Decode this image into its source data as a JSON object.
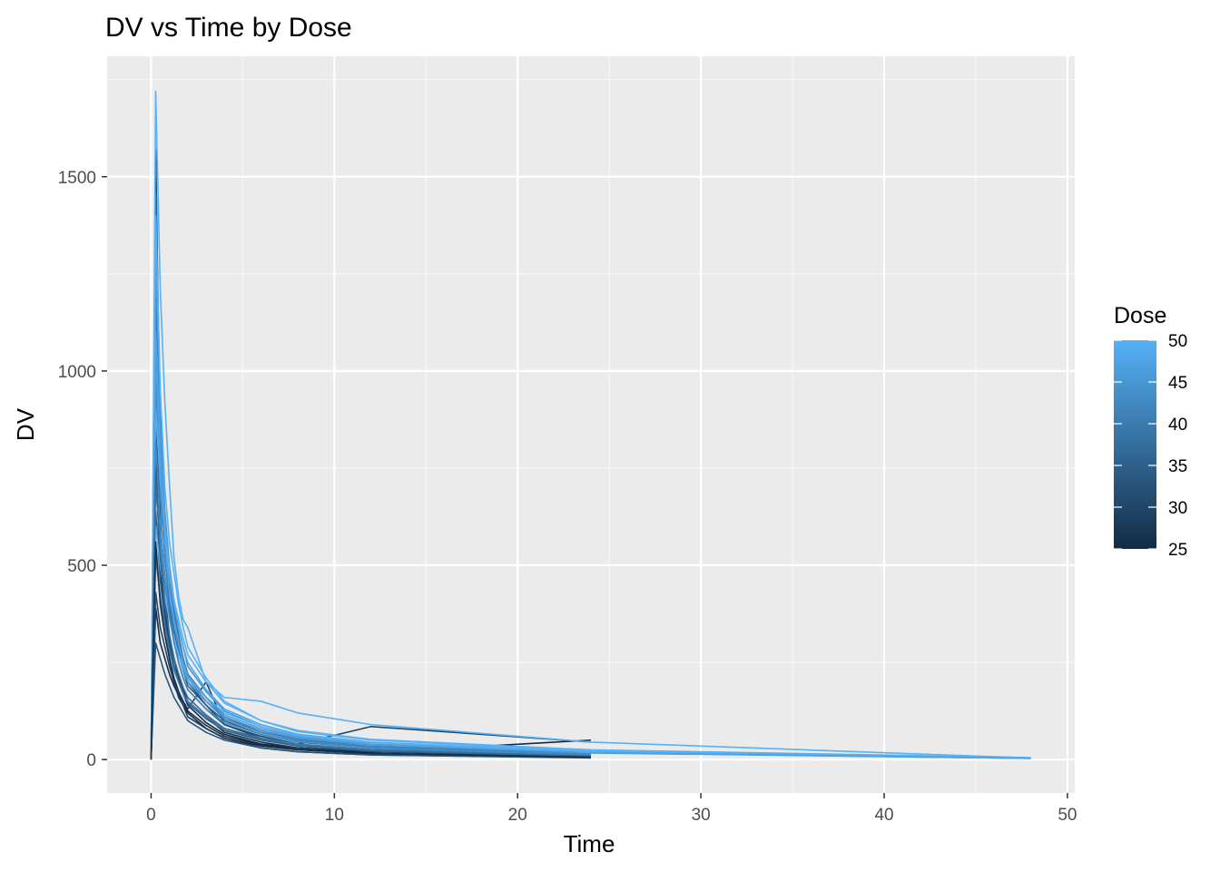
{
  "chart_data": {
    "type": "line",
    "title": "DV vs Time by Dose",
    "xlabel": "Time",
    "ylabel": "DV",
    "xlim": [
      -2.4,
      50.4
    ],
    "ylim": [
      -86,
      1810
    ],
    "x_ticks": [
      0,
      10,
      20,
      30,
      40,
      50
    ],
    "y_ticks": [
      0,
      500,
      1000,
      1500
    ],
    "grid": true,
    "legend": {
      "title": "Dose",
      "position": "right",
      "type": "colorbar",
      "range": [
        25,
        50
      ],
      "ticks": [
        25,
        30,
        35,
        40,
        45,
        50
      ],
      "colors": {
        "low": "#132b43",
        "high": "#56b1f7"
      }
    },
    "sampling_times": [
      0,
      0.25,
      0.5,
      0.75,
      1,
      1.25,
      1.5,
      1.75,
      2,
      3,
      4,
      6,
      8,
      12,
      24,
      48
    ],
    "series": [
      {
        "dose": 25,
        "x": [
          0,
          0.25,
          0.5,
          0.75,
          1,
          1.25,
          1.5,
          1.75,
          2,
          3,
          4,
          6,
          8,
          12,
          24
        ],
        "y": [
          0,
          390,
          300,
          260,
          220,
          190,
          165,
          140,
          120,
          80,
          55,
          35,
          25,
          15,
          6
        ]
      },
      {
        "dose": 25,
        "x": [
          0,
          0.25,
          0.5,
          0.75,
          1,
          1.25,
          1.5,
          1.75,
          2,
          3,
          4,
          6,
          8,
          12,
          24
        ],
        "y": [
          0,
          780,
          480,
          380,
          300,
          240,
          200,
          170,
          140,
          95,
          65,
          40,
          30,
          18,
          50
        ]
      },
      {
        "dose": 27,
        "x": [
          0,
          0.25,
          0.5,
          0.75,
          1,
          1.25,
          1.5,
          1.75,
          2,
          3,
          4,
          6,
          8,
          12,
          24
        ],
        "y": [
          0,
          1160,
          620,
          420,
          320,
          260,
          210,
          180,
          150,
          110,
          70,
          45,
          30,
          20,
          8
        ]
      },
      {
        "dose": 28,
        "x": [
          0,
          0.25,
          0.5,
          0.75,
          1,
          1.25,
          1.5,
          1.75,
          2,
          3,
          4,
          6,
          8,
          12,
          24
        ],
        "y": [
          0,
          1090,
          560,
          360,
          260,
          200,
          160,
          140,
          110,
          80,
          55,
          30,
          20,
          12,
          5
        ]
      },
      {
        "dose": 30,
        "x": [
          0,
          0.25,
          0.5,
          0.75,
          1,
          1.25,
          1.5,
          1.75,
          2,
          3,
          4,
          6,
          8,
          12,
          24
        ],
        "y": [
          0,
          1570,
          780,
          560,
          450,
          380,
          300,
          240,
          200,
          140,
          90,
          55,
          35,
          22,
          10
        ]
      },
      {
        "dose": 30,
        "x": [
          0,
          0.25,
          0.5,
          0.75,
          1,
          1.25,
          1.5,
          1.75,
          2,
          3,
          4,
          6,
          8,
          12,
          24
        ],
        "y": [
          0,
          430,
          340,
          290,
          240,
          200,
          170,
          150,
          130,
          200,
          90,
          60,
          40,
          85,
          45
        ]
      },
      {
        "dose": 32,
        "x": [
          0,
          0.25,
          0.5,
          0.75,
          1,
          1.25,
          1.5,
          1.75,
          2,
          3,
          4,
          6,
          8,
          12,
          24
        ],
        "y": [
          0,
          880,
          600,
          470,
          380,
          310,
          250,
          210,
          180,
          130,
          90,
          60,
          40,
          25,
          10
        ]
      },
      {
        "dose": 33,
        "x": [
          0,
          0.25,
          0.5,
          0.75,
          1,
          1.25,
          1.5,
          1.75,
          2,
          3,
          4,
          6,
          8,
          12,
          24
        ],
        "y": [
          0,
          300,
          260,
          220,
          190,
          160,
          140,
          120,
          100,
          70,
          50,
          30,
          20,
          12,
          4
        ]
      },
      {
        "dose": 35,
        "x": [
          0,
          0.25,
          0.5,
          0.75,
          1,
          1.25,
          1.5,
          1.75,
          2,
          3,
          4,
          6,
          8,
          12,
          24
        ],
        "y": [
          0,
          1000,
          700,
          520,
          400,
          330,
          280,
          230,
          190,
          140,
          100,
          65,
          45,
          30,
          12
        ]
      },
      {
        "dose": 35,
        "x": [
          0,
          0.25,
          0.5,
          0.75,
          1,
          1.25,
          1.5,
          1.75,
          2,
          3,
          4,
          6,
          8,
          12,
          24
        ],
        "y": [
          0,
          640,
          460,
          360,
          290,
          240,
          200,
          170,
          145,
          105,
          75,
          50,
          35,
          22,
          9
        ]
      },
      {
        "dose": 38,
        "x": [
          0,
          0.25,
          0.5,
          0.75,
          1,
          1.25,
          1.5,
          1.75,
          2,
          3,
          4,
          6,
          8,
          12,
          24
        ],
        "y": [
          0,
          1460,
          900,
          620,
          480,
          390,
          320,
          260,
          220,
          160,
          110,
          70,
          50,
          32,
          14
        ]
      },
      {
        "dose": 40,
        "x": [
          0,
          0.25,
          0.5,
          0.75,
          1,
          1.25,
          1.5,
          1.75,
          2,
          3,
          4,
          6,
          8,
          12,
          24
        ],
        "y": [
          0,
          1200,
          800,
          600,
          460,
          380,
          310,
          260,
          220,
          160,
          110,
          75,
          52,
          34,
          15
        ]
      },
      {
        "dose": 40,
        "x": [
          0,
          0.25,
          0.5,
          0.75,
          1,
          1.25,
          1.5,
          1.75,
          2,
          3,
          4,
          6,
          8,
          12,
          24
        ],
        "y": [
          0,
          520,
          420,
          340,
          280,
          230,
          200,
          170,
          150,
          110,
          80,
          55,
          40,
          26,
          11
        ]
      },
      {
        "dose": 42,
        "x": [
          0,
          0.25,
          0.5,
          0.75,
          1,
          1.25,
          1.5,
          1.75,
          2,
          3,
          4,
          6,
          8,
          12,
          24
        ],
        "y": [
          0,
          950,
          680,
          520,
          410,
          340,
          290,
          240,
          210,
          150,
          105,
          70,
          50,
          32,
          13
        ]
      },
      {
        "dose": 45,
        "x": [
          0,
          0.25,
          0.5,
          0.75,
          1,
          1.25,
          1.5,
          1.75,
          2,
          3,
          4,
          6,
          8,
          12,
          24,
          48
        ],
        "y": [
          0,
          1300,
          860,
          640,
          500,
          410,
          340,
          290,
          240,
          175,
          125,
          85,
          60,
          40,
          18,
          3
        ]
      },
      {
        "dose": 45,
        "x": [
          0,
          0.25,
          0.5,
          0.75,
          1,
          1.25,
          1.5,
          1.75,
          2,
          3,
          4,
          6,
          8,
          12,
          24,
          48
        ],
        "y": [
          0,
          700,
          560,
          450,
          370,
          310,
          270,
          230,
          200,
          150,
          110,
          75,
          55,
          38,
          17,
          3
        ]
      },
      {
        "dose": 48,
        "x": [
          0,
          0.25,
          0.5,
          0.75,
          1,
          1.25,
          1.5,
          1.75,
          2,
          3,
          4,
          6,
          8,
          12,
          24,
          48
        ],
        "y": [
          0,
          1100,
          780,
          600,
          480,
          400,
          340,
          290,
          250,
          180,
          130,
          90,
          65,
          45,
          20,
          4
        ]
      },
      {
        "dose": 50,
        "x": [
          0,
          0.25,
          0.5,
          0.75,
          1,
          1.25,
          1.5,
          1.75,
          2,
          3,
          4,
          6,
          8,
          12,
          24,
          48
        ],
        "y": [
          0,
          1720,
          1210,
          920,
          710,
          520,
          420,
          360,
          340,
          200,
          160,
          150,
          120,
          90,
          45,
          4
        ]
      },
      {
        "dose": 50,
        "x": [
          0,
          0.25,
          0.5,
          0.75,
          1,
          1.25,
          1.5,
          1.75,
          2,
          3,
          4,
          6,
          8,
          12,
          24,
          48
        ],
        "y": [
          0,
          1400,
          950,
          700,
          560,
          480,
          400,
          340,
          290,
          210,
          150,
          100,
          75,
          52,
          25,
          5
        ]
      },
      {
        "dose": 50,
        "x": [
          0,
          0.25,
          0.5,
          0.75,
          1,
          1.25,
          1.5,
          1.75,
          2,
          3,
          4,
          6,
          8,
          12,
          24,
          48
        ],
        "y": [
          0,
          900,
          720,
          580,
          480,
          410,
          360,
          310,
          270,
          200,
          145,
          100,
          72,
          50,
          22,
          4
        ]
      },
      {
        "dose": 50,
        "x": [
          0,
          0.25,
          0.5,
          0.75,
          1,
          1.25,
          1.5,
          1.75,
          2,
          3,
          4,
          6,
          8,
          12,
          24,
          48
        ],
        "y": [
          0,
          600,
          500,
          420,
          360,
          310,
          270,
          240,
          210,
          160,
          120,
          85,
          62,
          44,
          20,
          3
        ]
      },
      {
        "dose": 47,
        "x": [
          0,
          0.25,
          0.5,
          0.75,
          1,
          1.25,
          1.5,
          1.75,
          2,
          3,
          4,
          6,
          8,
          12,
          24,
          48
        ],
        "y": [
          0,
          1050,
          740,
          560,
          440,
          360,
          300,
          250,
          215,
          160,
          115,
          80,
          58,
          40,
          18,
          3
        ]
      },
      {
        "dose": 43,
        "x": [
          0,
          0.25,
          0.5,
          0.75,
          1,
          1.25,
          1.5,
          1.75,
          2,
          3,
          4,
          6,
          8,
          12,
          24
        ],
        "y": [
          0,
          820,
          600,
          470,
          370,
          300,
          250,
          210,
          180,
          130,
          95,
          65,
          46,
          30,
          12
        ]
      },
      {
        "dose": 37,
        "x": [
          0,
          0.25,
          0.5,
          0.75,
          1,
          1.25,
          1.5,
          1.75,
          2,
          3,
          4,
          6,
          8,
          12,
          24
        ],
        "y": [
          0,
          740,
          520,
          400,
          320,
          260,
          220,
          185,
          160,
          115,
          80,
          52,
          36,
          23,
          9
        ]
      },
      {
        "dose": 26,
        "x": [
          0,
          0.25,
          0.5,
          0.75,
          1,
          1.25,
          1.5,
          1.75,
          2,
          3,
          4,
          6,
          8,
          12,
          24
        ],
        "y": [
          0,
          560,
          400,
          320,
          260,
          210,
          175,
          150,
          125,
          88,
          60,
          38,
          26,
          16,
          6
        ]
      }
    ]
  }
}
